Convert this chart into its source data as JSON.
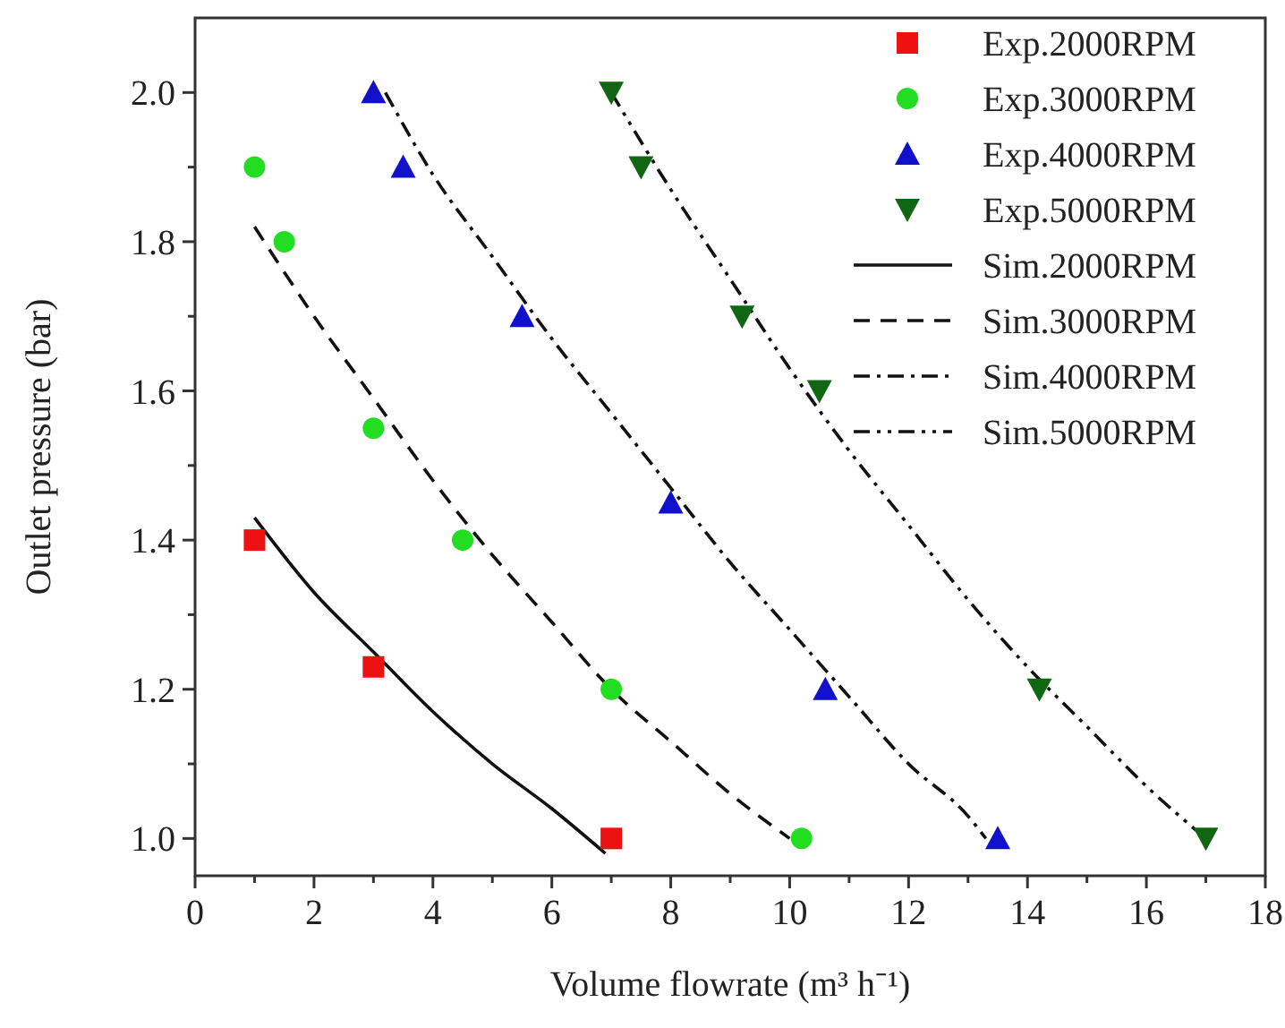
{
  "chart_data": {
    "type": "scatter",
    "xlabel": "Volume flowrate (m³ h⁻¹)",
    "ylabel": "Outlet pressure (bar)",
    "xlim": [
      0,
      18
    ],
    "ylim": [
      0.95,
      2.1
    ],
    "xticks": [
      0,
      {
        "value": 1,
        "label": null
      },
      2,
      {
        "value": 3,
        "label": null
      },
      4,
      {
        "value": 5,
        "label": null
      },
      6,
      {
        "value": 7,
        "label": null
      },
      8,
      {
        "value": 9,
        "label": null
      },
      10,
      {
        "value": 11,
        "label": null
      },
      12,
      {
        "value": 13,
        "label": null
      },
      14,
      {
        "value": 15,
        "label": null
      },
      16,
      {
        "value": 17,
        "label": null
      },
      18
    ],
    "yticks": [
      {
        "value": 1,
        "label": "1.0"
      },
      {
        "value": 1.1,
        "label": null
      },
      1.2,
      {
        "value": 1.3,
        "label": null
      },
      1.4,
      {
        "value": 1.5,
        "label": null
      },
      1.6,
      {
        "value": 1.7,
        "label": null
      },
      1.8,
      {
        "value": 1.9,
        "label": null
      },
      {
        "value": 2,
        "label": "2.0"
      }
    ],
    "grid": false,
    "legend": "top right",
    "series": [
      {
        "name": "Exp.2000RPM",
        "marker": "square",
        "color": "#ee1111",
        "x": [
          1,
          3,
          7
        ],
        "values": [
          1.4,
          1.23,
          1.0
        ]
      },
      {
        "name": "Exp.3000RPM",
        "marker": "circle",
        "color": "#22dd22",
        "x": [
          1,
          1.5,
          3,
          4.5,
          7,
          10.2
        ],
        "values": [
          1.9,
          1.8,
          1.55,
          1.4,
          1.2,
          1.0
        ]
      },
      {
        "name": "Exp.4000RPM",
        "marker": "triangle",
        "color": "#1111cc",
        "x": [
          3,
          3.5,
          5.5,
          8,
          10.6,
          13.5
        ],
        "values": [
          2.0,
          1.9,
          1.7,
          1.45,
          1.2,
          1.0
        ]
      },
      {
        "name": "Exp.5000RPM",
        "marker": "triangle-down",
        "color": "#116611",
        "x": [
          7,
          7.5,
          9.2,
          10.5,
          14.2,
          17
        ],
        "values": [
          2.0,
          1.9,
          1.7,
          1.6,
          1.2,
          1.0
        ]
      },
      {
        "name": "Sim.2000RPM",
        "type": "line",
        "marker": "none",
        "line_style": "solid",
        "color": "#111111",
        "x": [
          1,
          2,
          3,
          4,
          5,
          6,
          6.9
        ],
        "values": [
          1.43,
          1.33,
          1.25,
          1.17,
          1.1,
          1.04,
          0.98
        ]
      },
      {
        "name": "Sim.3000RPM",
        "type": "line",
        "marker": "none",
        "line_style": "dashed",
        "color": "#111111",
        "x": [
          1,
          2,
          3,
          4,
          5,
          6,
          7,
          8,
          9,
          10
        ],
        "values": [
          1.82,
          1.7,
          1.59,
          1.48,
          1.38,
          1.29,
          1.2,
          1.13,
          1.06,
          1.0
        ]
      },
      {
        "name": "Sim.4000RPM",
        "type": "line",
        "marker": "none",
        "line_style": "dashdot",
        "color": "#111111",
        "x": [
          3.2,
          4,
          5,
          6,
          7,
          8,
          9,
          10,
          11,
          12,
          13,
          13.3
        ],
        "values": [
          2.0,
          1.89,
          1.78,
          1.67,
          1.57,
          1.47,
          1.37,
          1.28,
          1.19,
          1.1,
          1.03,
          1.0
        ]
      },
      {
        "name": "Sim.5000RPM",
        "type": "line",
        "marker": "none",
        "line_style": "dashdotdot",
        "color": "#111111",
        "x": [
          7,
          8,
          9,
          10,
          11,
          12,
          13,
          14,
          15,
          16,
          17
        ],
        "values": [
          2.0,
          1.87,
          1.75,
          1.63,
          1.52,
          1.42,
          1.32,
          1.23,
          1.15,
          1.07,
          1.0
        ]
      }
    ]
  }
}
